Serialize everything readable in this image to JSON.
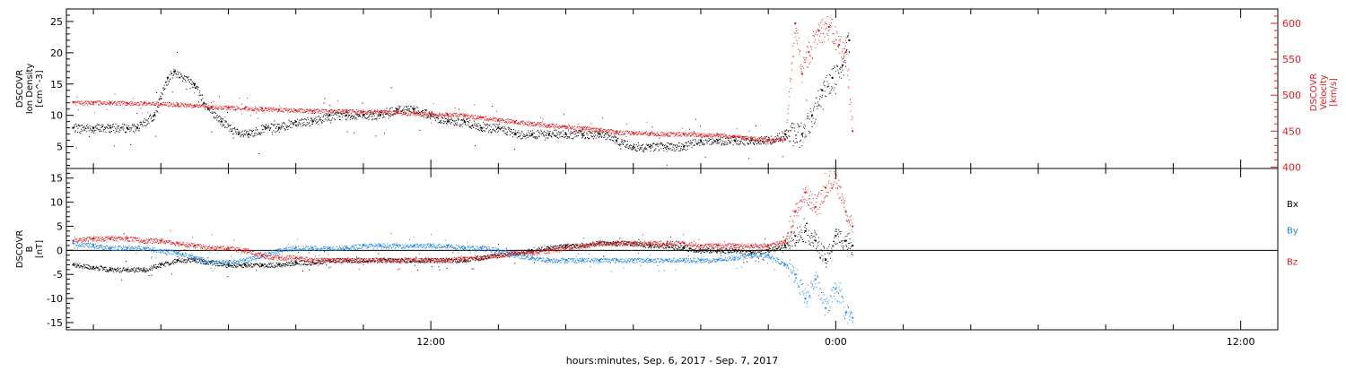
{
  "time_axis": {
    "title": "hours:minutes, Sep.  6, 2017 - Sep.  7, 2017",
    "tick_labels": [
      {
        "hour": 12,
        "label": "12:00"
      },
      {
        "hour": 24,
        "label": "0:00"
      },
      {
        "hour": 36,
        "label": "12:00"
      }
    ],
    "range_hours": [
      1.2,
      37.1
    ]
  },
  "colors": {
    "black": "#000000",
    "red": "#e41a1c",
    "blue": "#1e88e5"
  },
  "chart_data": [
    {
      "type": "scatter",
      "panel": "plasma",
      "ylabel": [
        "DSCOVR",
        "Ion Density",
        "[cm^-3]"
      ],
      "ylabel_right": [
        "DSCOVR",
        "Velocity",
        "[km/s]"
      ],
      "ylim": [
        1.5,
        27
      ],
      "ylim_right": [
        398,
        620
      ],
      "yticks": [
        5,
        10,
        15,
        20,
        25
      ],
      "yticks_right": [
        400,
        450,
        500,
        550,
        600
      ],
      "series": [
        {
          "axis": "left",
          "color": "black",
          "x": [
            1.4,
            2.0,
            2.5,
            3.0,
            3.3,
            3.8,
            4.2,
            4.4,
            5.0,
            5.4,
            5.8,
            6.3,
            6.6,
            7.1,
            7.5,
            8.0,
            8.5,
            9.0,
            9.5,
            10.0,
            10.5,
            11.0,
            11.5,
            12.0,
            12.5,
            13.0,
            13.5,
            14.0,
            14.5,
            15.0,
            15.5,
            16.0,
            16.5,
            17.0,
            17.5,
            18.0,
            18.5,
            19.0,
            19.5,
            20.0,
            20.5,
            21.0,
            21.5,
            22.0,
            22.5,
            23.0,
            23.3,
            23.6,
            23.9,
            24.2,
            24.4
          ],
          "y": [
            8,
            8,
            8,
            8,
            8,
            10,
            16,
            17,
            15,
            11,
            9,
            7,
            7,
            8,
            8,
            9,
            9,
            10,
            10,
            10,
            10,
            11,
            11,
            10,
            9,
            9,
            8,
            8,
            7,
            7,
            7,
            7,
            7,
            7,
            6,
            5,
            5,
            5,
            5,
            6,
            6,
            6,
            6,
            6,
            7,
            7,
            10,
            14,
            16,
            18,
            22
          ]
        },
        {
          "axis": "right",
          "color": "red",
          "x": [
            1.4,
            2.0,
            2.5,
            3.0,
            3.5,
            4.0,
            4.5,
            5.0,
            5.5,
            6.0,
            6.5,
            7.0,
            7.5,
            8.0,
            8.5,
            9.0,
            9.5,
            10.0,
            10.5,
            11.0,
            11.5,
            12.0,
            12.5,
            13.0,
            13.5,
            14.0,
            14.5,
            15.0,
            15.5,
            16.0,
            16.5,
            17.0,
            17.5,
            18.0,
            18.5,
            19.0,
            19.5,
            20.0,
            20.5,
            21.0,
            21.5,
            22.0,
            22.5,
            22.8,
            23.0,
            23.2,
            23.5,
            23.8,
            24.1,
            24.3,
            24.5
          ],
          "y": [
            490,
            490,
            490,
            489,
            489,
            488,
            487,
            486,
            484,
            483,
            482,
            481,
            480,
            479,
            478,
            478,
            478,
            477,
            477,
            476,
            475,
            474,
            473,
            472,
            469,
            466,
            463,
            461,
            458,
            456,
            454,
            452,
            449,
            448,
            447,
            446,
            446,
            445,
            445,
            443,
            440,
            438,
            438,
            600,
            530,
            560,
            590,
            595,
            570,
            560,
            450
          ]
        }
      ]
    },
    {
      "type": "scatter",
      "panel": "magnetic_field",
      "ylabel": [
        "DSCOVR",
        "B",
        "[nT]"
      ],
      "ylim": [
        -16.5,
        17
      ],
      "yticks": [
        -15,
        -10,
        -5,
        0,
        5,
        10,
        15
      ],
      "legend_position": "right",
      "series": [
        {
          "name": "Bx",
          "color": "black",
          "x": [
            1.4,
            2.0,
            2.5,
            3.0,
            3.5,
            4.0,
            4.5,
            5.0,
            5.5,
            6.0,
            6.5,
            7.0,
            7.5,
            8.0,
            8.5,
            9.0,
            9.5,
            10.0,
            10.5,
            11.0,
            11.5,
            12.0,
            12.5,
            13.0,
            13.5,
            14.0,
            14.5,
            15.0,
            15.5,
            16.0,
            16.5,
            17.0,
            17.5,
            18.0,
            18.5,
            19.0,
            19.5,
            20.0,
            20.5,
            21.0,
            21.5,
            22.0,
            22.5,
            22.8,
            23.1,
            23.4,
            23.7,
            24.0,
            24.3,
            24.5
          ],
          "y": [
            -3,
            -3.5,
            -4,
            -4,
            -4,
            -3,
            -2,
            -2,
            -2.5,
            -3,
            -3,
            -3,
            -3,
            -2.5,
            -2.5,
            -2,
            -2,
            -2,
            -2,
            -2,
            -2,
            -2,
            -2,
            -2,
            -1.5,
            -1,
            -0.5,
            0,
            0.5,
            1,
            1,
            1.5,
            1.5,
            1.5,
            1,
            1,
            0.5,
            0,
            0,
            0,
            -0.5,
            0,
            1,
            3,
            4,
            2,
            -2,
            3,
            2,
            1
          ]
        },
        {
          "name": "By",
          "color": "blue",
          "x": [
            1.4,
            2.0,
            2.5,
            3.0,
            3.5,
            4.0,
            4.5,
            5.0,
            5.5,
            6.0,
            6.5,
            7.0,
            7.5,
            8.0,
            8.5,
            9.0,
            9.5,
            10.0,
            10.5,
            11.0,
            11.5,
            12.0,
            12.5,
            13.0,
            13.5,
            14.0,
            14.5,
            15.0,
            15.5,
            16.0,
            16.5,
            17.0,
            17.5,
            18.0,
            18.5,
            19.0,
            19.5,
            20.0,
            20.5,
            21.0,
            21.5,
            22.0,
            22.5,
            22.8,
            23.1,
            23.4,
            23.7,
            24.0,
            24.3,
            24.5
          ],
          "y": [
            1.5,
            1,
            0.5,
            0.5,
            0.5,
            0,
            -0.5,
            -1.5,
            -2.5,
            -2.5,
            -2,
            -1,
            0,
            0.5,
            0.5,
            0.5,
            0.5,
            1,
            1,
            1,
            1,
            1,
            1,
            0.5,
            0.5,
            0,
            -1,
            -1.5,
            -2,
            -2,
            -2,
            -2,
            -2,
            -2,
            -2,
            -2,
            -2,
            -2,
            -2,
            -1.5,
            -1,
            -1,
            -3,
            -5,
            -10,
            -6,
            -12,
            -8,
            -13,
            -14
          ]
        },
        {
          "name": "Bz",
          "color": "red",
          "x": [
            1.4,
            2.0,
            2.5,
            3.0,
            3.5,
            4.0,
            4.5,
            5.0,
            5.5,
            6.0,
            6.5,
            7.0,
            7.5,
            8.0,
            8.5,
            9.0,
            9.5,
            10.0,
            10.5,
            11.0,
            11.5,
            12.0,
            12.5,
            13.0,
            13.5,
            14.0,
            14.5,
            15.0,
            15.5,
            16.0,
            16.5,
            17.0,
            17.5,
            18.0,
            18.5,
            19.0,
            19.5,
            20.0,
            20.5,
            21.0,
            21.5,
            22.0,
            22.5,
            22.8,
            23.1,
            23.4,
            23.7,
            24.0,
            24.3,
            24.5
          ],
          "y": [
            2,
            2.5,
            2.5,
            2.5,
            2,
            2,
            1.5,
            1,
            0.5,
            0.5,
            0,
            -1,
            -1.5,
            -1.5,
            -2,
            -2,
            -2,
            -2,
            -2,
            -2,
            -2,
            -2,
            -2,
            -1.5,
            -1.5,
            -1,
            -0.5,
            -0.5,
            0,
            0.5,
            1,
            1.5,
            1.5,
            1.5,
            1.5,
            1.5,
            1.5,
            1,
            1,
            1,
            1,
            1,
            2,
            8,
            12,
            9,
            13,
            15,
            8,
            5
          ]
        }
      ]
    }
  ]
}
